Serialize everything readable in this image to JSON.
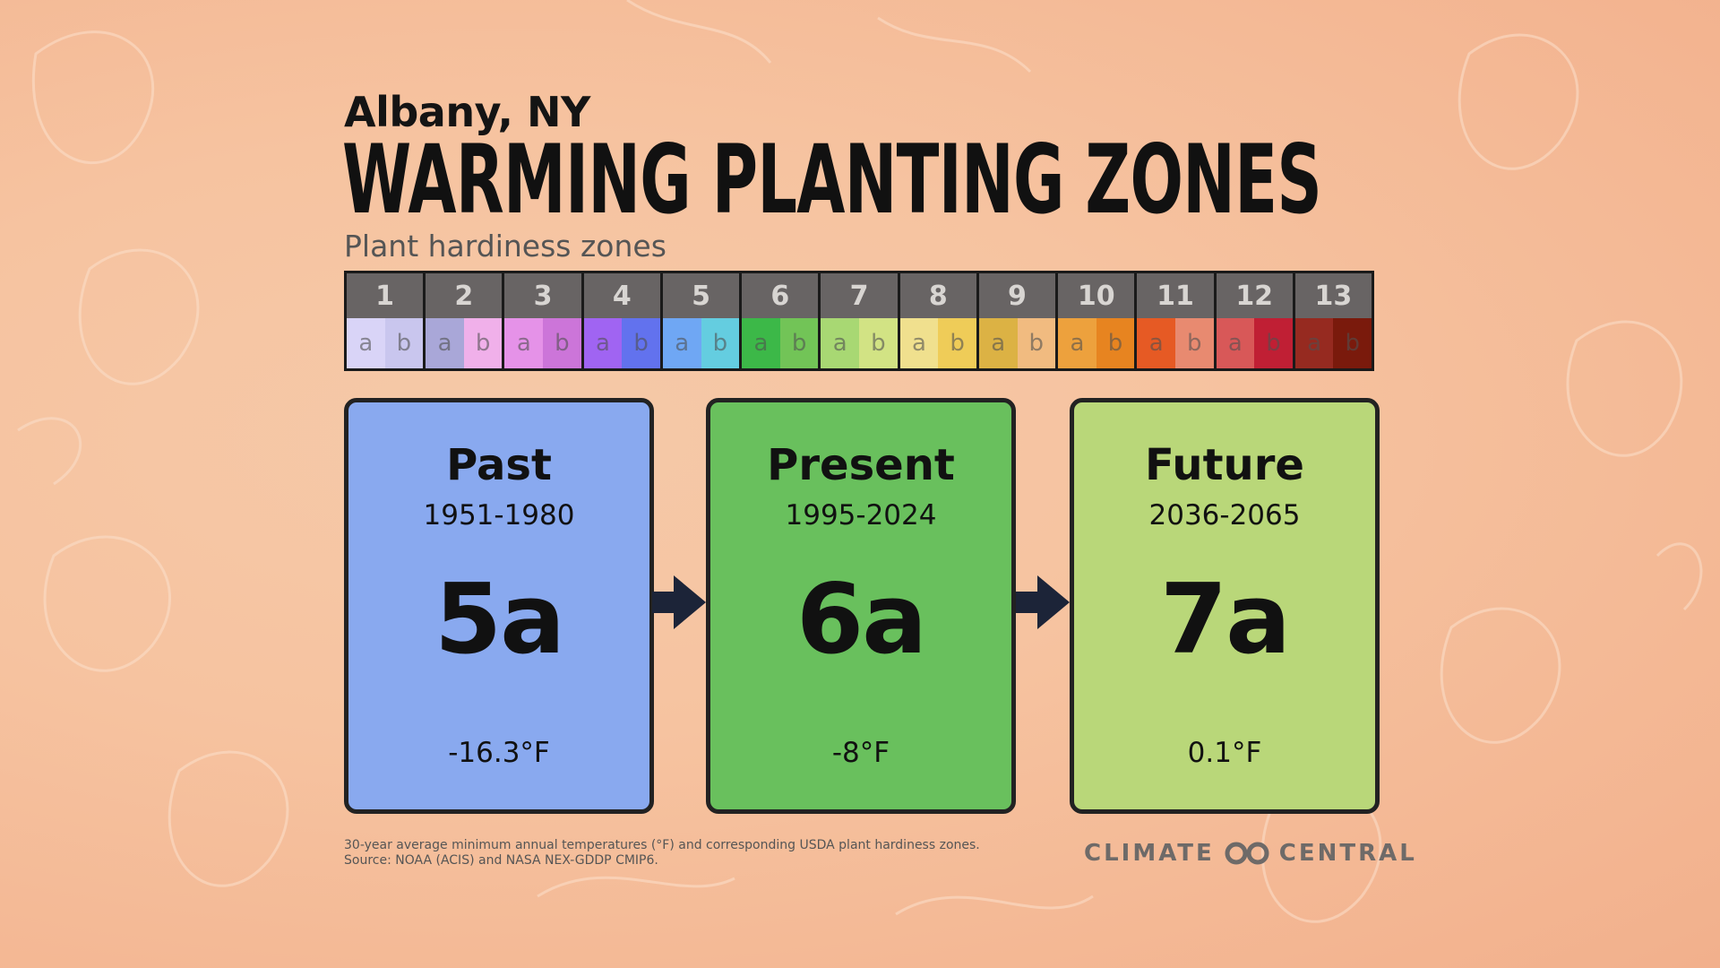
{
  "header": {
    "location": "Albany, NY",
    "title": "WARMING PLANTING ZONES",
    "subtitle": "Plant hardiness zones"
  },
  "zone_scale": [
    {
      "zone": "1",
      "a_color": "#d9d4f7",
      "b_color": "#c9c6ee"
    },
    {
      "zone": "2",
      "a_color": "#a9a7d8",
      "b_color": "#f0b0ea"
    },
    {
      "zone": "3",
      "a_color": "#e592e8",
      "b_color": "#cc75d9"
    },
    {
      "zone": "4",
      "a_color": "#a064f2",
      "b_color": "#6272ee"
    },
    {
      "zone": "5",
      "a_color": "#6fa7f4",
      "b_color": "#64cde0"
    },
    {
      "zone": "6",
      "a_color": "#3cb848",
      "b_color": "#72c457"
    },
    {
      "zone": "7",
      "a_color": "#a8d873",
      "b_color": "#d2e384"
    },
    {
      "zone": "8",
      "a_color": "#f0e08e",
      "b_color": "#efcc58"
    },
    {
      "zone": "9",
      "a_color": "#dcb244",
      "b_color": "#f1bb80"
    },
    {
      "zone": "10",
      "a_color": "#eda13d",
      "b_color": "#e78420"
    },
    {
      "zone": "11",
      "a_color": "#e65a24",
      "b_color": "#e88a70"
    },
    {
      "zone": "12",
      "a_color": "#d85858",
      "b_color": "#c01f34"
    },
    {
      "zone": "13",
      "a_color": "#962a20",
      "b_color": "#7a1a0c"
    }
  ],
  "sub_labels": {
    "a": "a",
    "b": "b"
  },
  "cards": [
    {
      "title": "Past",
      "years": "1951-1980",
      "zone": "5a",
      "temp": "-16.3°F",
      "color": "#89a9ef"
    },
    {
      "title": "Present",
      "years": "1995-2024",
      "zone": "6a",
      "temp": "-8°F",
      "color": "#69c05d"
    },
    {
      "title": "Future",
      "years": "2036-2065",
      "zone": "7a",
      "temp": "0.1°F",
      "color": "#b9d779"
    }
  ],
  "footer": {
    "note_line1": "30-year average minimum annual temperatures (°F) and corresponding USDA plant hardiness zones.",
    "note_line2": "Source: NOAA (ACIS) and NASA NEX-GDDP CMIP6.",
    "brand_left": "CLIMATE",
    "brand_right": "CENTRAL"
  },
  "colors": {
    "arrow": "#1c2438",
    "border": "#222222"
  }
}
